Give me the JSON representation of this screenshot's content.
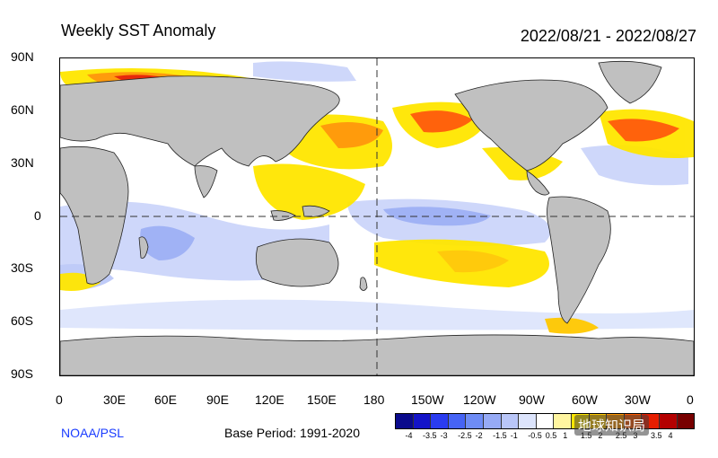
{
  "title": "Weekly SST Anomaly",
  "date_range": "2022/08/21 - 2022/08/27",
  "y_labels": [
    "90N",
    "60N",
    "30N",
    "0",
    "30S",
    "60S",
    "90S"
  ],
  "x_labels": [
    "0",
    "30E",
    "60E",
    "90E",
    "120E",
    "150E",
    "180",
    "150W",
    "120W",
    "90W",
    "60W",
    "30W",
    "0"
  ],
  "credit": "NOAA/PSL",
  "base_period": "Base Period: 1991-2020",
  "colorbar": {
    "ticks": [
      "-4",
      "-3.5",
      "-3",
      "-2.5",
      "-2",
      "-1.5",
      "-1",
      "-0.5",
      "0.5",
      "1",
      "1.5",
      "2",
      "2.5",
      "3",
      "3.5",
      "4"
    ],
    "colors": [
      "#0a0a8c",
      "#1414c8",
      "#2a3cf0",
      "#4664f5",
      "#6e8cf5",
      "#96aaf5",
      "#b9c6f8",
      "#dce4fc",
      "#ffffff",
      "#fff5a0",
      "#ffe600",
      "#ffc800",
      "#ff9600",
      "#ff5a00",
      "#e61e00",
      "#b40000",
      "#780000"
    ]
  },
  "watermark": "地球知识局"
}
